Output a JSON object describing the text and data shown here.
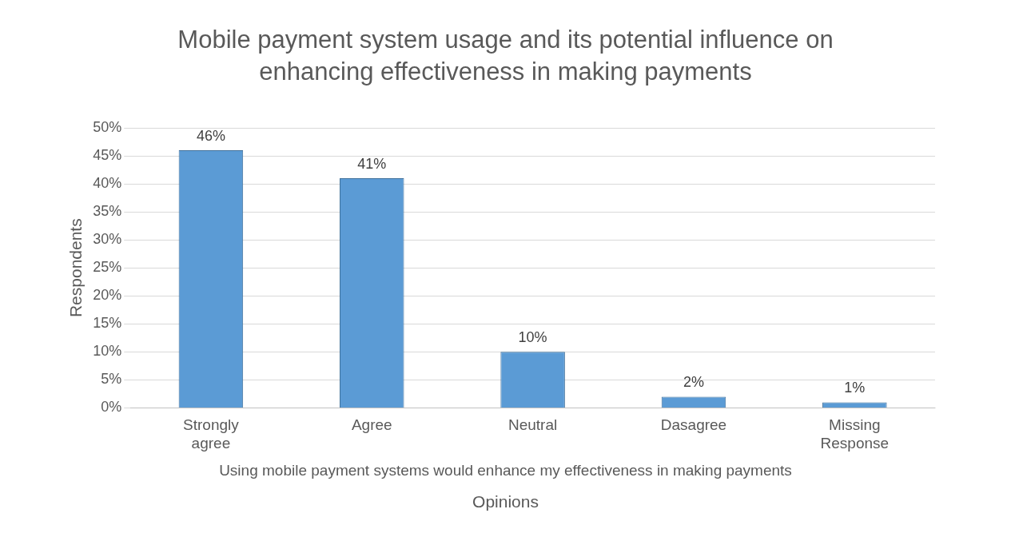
{
  "chart_data": {
    "type": "bar",
    "title": "Mobile payment system usage and its potential influence on enhancing effectiveness in making payments",
    "categories": [
      "Strongly agree",
      "Agree",
      "Neutral",
      "Dasagree",
      "Missing Response"
    ],
    "values": [
      46,
      41,
      10,
      2,
      1
    ],
    "value_labels": [
      "46%",
      "41%",
      "10%",
      "2%",
      "1%"
    ],
    "color": "#5b9bd5",
    "xlabel": "Opinions",
    "ylabel": "Respondents",
    "annotations": [
      "Using mobile payment systems would enhance my effectiveness in making payments"
    ],
    "ylim": [
      0,
      50
    ],
    "yticks": [
      {
        "value": 0,
        "label": "0%"
      },
      {
        "value": 5,
        "label": "5%"
      },
      {
        "value": 10,
        "label": "10%"
      },
      {
        "value": 15,
        "label": "15%"
      },
      {
        "value": 20,
        "label": "20%"
      },
      {
        "value": 25,
        "label": "25%"
      },
      {
        "value": 30,
        "label": "30%"
      },
      {
        "value": 35,
        "label": "35%"
      },
      {
        "value": 40,
        "label": "40%"
      },
      {
        "value": 45,
        "label": "45%"
      },
      {
        "value": 50,
        "label": "50%"
      }
    ],
    "grid": "y"
  }
}
